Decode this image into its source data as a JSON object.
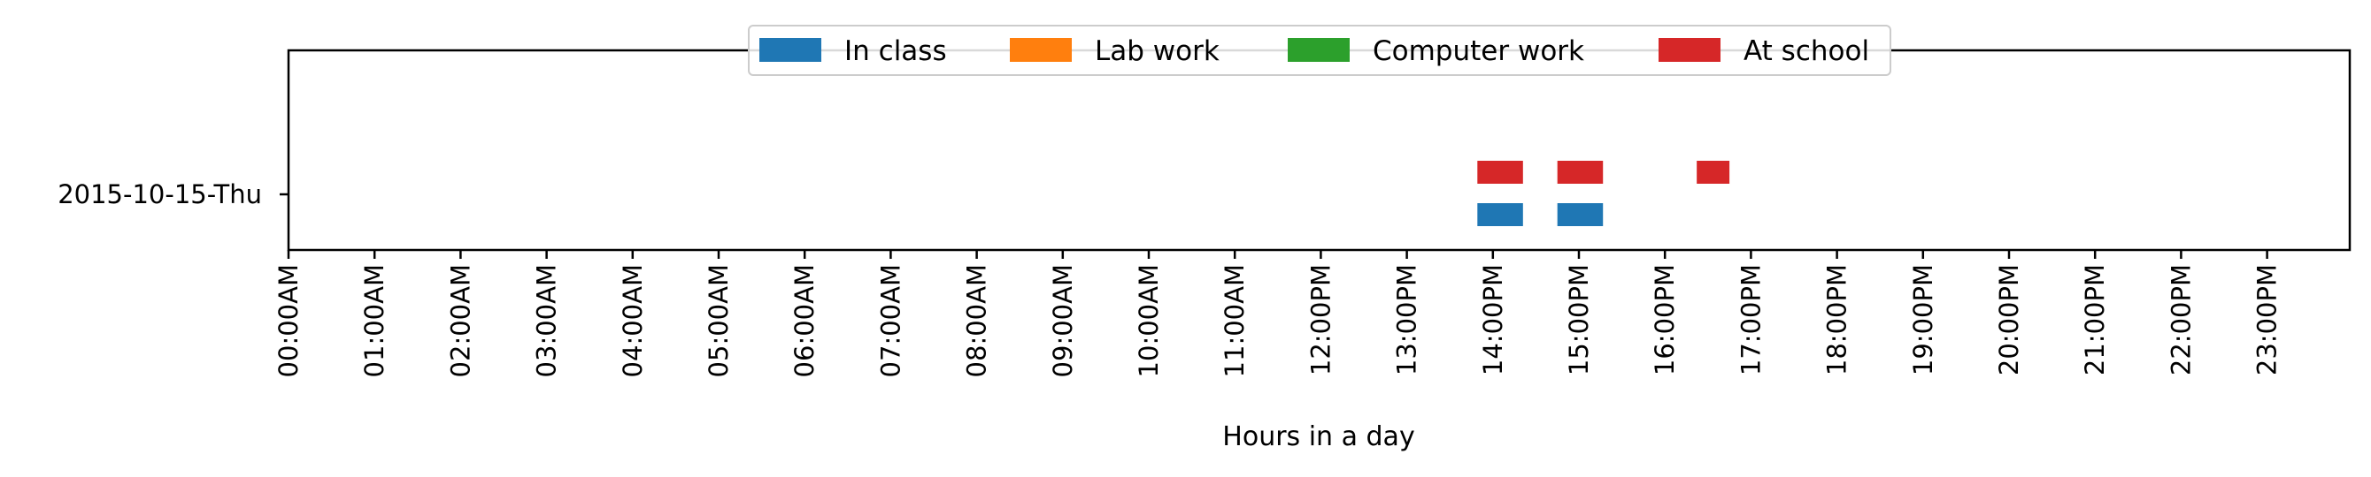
{
  "chart_data": {
    "type": "timeline",
    "title": "",
    "xlabel": "Hours in a day",
    "ylabel": "",
    "xlim": [
      0,
      24
    ],
    "x_tick_labels": [
      "00:00AM",
      "01:00AM",
      "02:00AM",
      "03:00AM",
      "04:00AM",
      "05:00AM",
      "06:00AM",
      "07:00AM",
      "08:00AM",
      "09:00AM",
      "10:00AM",
      "11:00AM",
      "12:00PM",
      "13:00PM",
      "14:00PM",
      "15:00PM",
      "16:00PM",
      "17:00PM",
      "18:00PM",
      "19:00PM",
      "20:00PM",
      "21:00PM",
      "22:00PM",
      "23:00PM"
    ],
    "y_categories": [
      "2015-10-15-Thu"
    ],
    "legend_position": "top-center",
    "series": [
      {
        "name": "In class",
        "color": "#1f77b4",
        "intervals": [
          [
            13.82,
            14.35
          ],
          [
            14.75,
            15.28
          ]
        ]
      },
      {
        "name": "Lab work",
        "color": "#ff7f0e",
        "intervals": []
      },
      {
        "name": "Computer work",
        "color": "#2ca02c",
        "intervals": []
      },
      {
        "name": "At school",
        "color": "#d62728",
        "intervals": [
          [
            13.82,
            14.35
          ],
          [
            14.75,
            15.28
          ],
          [
            16.37,
            16.75
          ]
        ]
      }
    ]
  }
}
